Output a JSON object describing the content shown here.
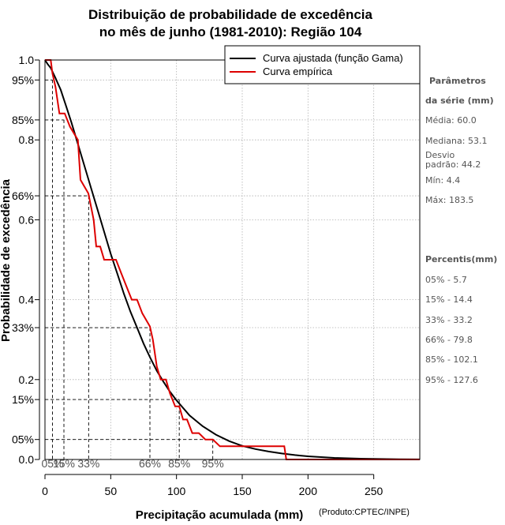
{
  "chart_data": {
    "type": "line",
    "title": [
      "Distribuição de probabilidade de excedência",
      "no mês de junho (1981-2010): Região 104"
    ],
    "xlabel": "Precipitação acumulada (mm)",
    "ylabel": "Probabilidade de excedência",
    "credit": "(Produto:CPTEC/INPE)",
    "xlim": [
      0,
      285
    ],
    "ylim": [
      0,
      1
    ],
    "x_ticks": [
      0,
      50,
      100,
      150,
      200,
      250
    ],
    "y_ticks": [
      {
        "value": 1.0,
        "label": "1.0"
      },
      {
        "value": 0.95,
        "label": "95%"
      },
      {
        "value": 0.85,
        "label": "85%"
      },
      {
        "value": 0.8,
        "label": "0.8"
      },
      {
        "value": 0.66,
        "label": "66%"
      },
      {
        "value": 0.6,
        "label": "0.6"
      },
      {
        "value": 0.4,
        "label": "0.4"
      },
      {
        "value": 0.33,
        "label": "33%"
      },
      {
        "value": 0.2,
        "label": "0.2"
      },
      {
        "value": 0.15,
        "label": "15%"
      },
      {
        "value": 0.05,
        "label": "05%"
      },
      {
        "value": 0.0,
        "label": "0.0"
      }
    ],
    "grid": true,
    "legend_position": "top-right",
    "series": [
      {
        "name": "Curva ajustada (função Gama)",
        "color": "#000000",
        "style": "smooth",
        "x": [
          0,
          2,
          4.4,
          8,
          12,
          16,
          20,
          25,
          30,
          35,
          40,
          45,
          50,
          55,
          60,
          65,
          70,
          75,
          80,
          85,
          90,
          95,
          100,
          110,
          120,
          130,
          140,
          150,
          160,
          170,
          180,
          190,
          200,
          210,
          220,
          230,
          240,
          250,
          260,
          270,
          285
        ],
        "y": [
          1.0,
          0.99,
          0.98,
          0.955,
          0.925,
          0.885,
          0.845,
          0.79,
          0.735,
          0.68,
          0.625,
          0.57,
          0.515,
          0.465,
          0.415,
          0.37,
          0.33,
          0.29,
          0.255,
          0.222,
          0.195,
          0.17,
          0.148,
          0.11,
          0.083,
          0.062,
          0.046,
          0.034,
          0.026,
          0.02,
          0.015,
          0.011,
          0.008,
          0.006,
          0.004,
          0.003,
          0.002,
          0.0015,
          0.001,
          0.0005,
          0.0002
        ]
      },
      {
        "name": "Curva empírica",
        "color": "#dd0000",
        "style": "step",
        "x": [
          0,
          4.4,
          5.7,
          8,
          11,
          15,
          19,
          25,
          27,
          33,
          37,
          39,
          42,
          45,
          50,
          54,
          58,
          62,
          66,
          70,
          74,
          79.8,
          82,
          85,
          88,
          92,
          95,
          99,
          102.1,
          105,
          108,
          112,
          117,
          122,
          127.6,
          133,
          141,
          150,
          158,
          182,
          183.5,
          285
        ],
        "y": [
          1.0,
          1.0,
          0.966,
          0.933,
          0.866,
          0.866,
          0.833,
          0.8,
          0.7,
          0.666,
          0.6,
          0.533,
          0.533,
          0.5,
          0.5,
          0.5,
          0.466,
          0.433,
          0.4,
          0.4,
          0.366,
          0.333,
          0.3,
          0.233,
          0.2,
          0.2,
          0.166,
          0.133,
          0.133,
          0.1,
          0.1,
          0.066,
          0.066,
          0.05,
          0.05,
          0.033,
          0.033,
          0.033,
          0.033,
          0.033,
          0.0,
          0.0
        ]
      }
    ],
    "percentile_markers": [
      {
        "label": "05%",
        "prob": 0.95,
        "x": 5.7
      },
      {
        "label": "15%",
        "prob": 0.85,
        "x": 14.4
      },
      {
        "label": "33%",
        "prob": 0.66,
        "x": 33.2
      },
      {
        "label": "66%",
        "prob": 0.33,
        "x": 79.8
      },
      {
        "label": "85%",
        "prob": 0.15,
        "x": 102.1
      },
      {
        "label": "95%",
        "prob": 0.05,
        "x": 127.6
      }
    ]
  },
  "sidebar": {
    "params_title": "Parâmetros",
    "params_sub": "da série (mm)",
    "media": "Média: 60.0",
    "mediana": "Mediana: 53.1",
    "desvio": "Desvio\npadrão: 44.2",
    "min": "Mín: 4.4",
    "max": "Máx: 183.5",
    "percentis_title": "Percentis(mm)",
    "p05": "05% - 5.7",
    "p15": "15% - 14.4",
    "p33": "33% - 33.2",
    "p66": "66% - 79.8",
    "p85": "85% - 102.1",
    "p95": "95% - 127.6"
  },
  "colors": {
    "fitted": "#000000",
    "empirical": "#dd0000",
    "grid": "#b0b0b0"
  }
}
